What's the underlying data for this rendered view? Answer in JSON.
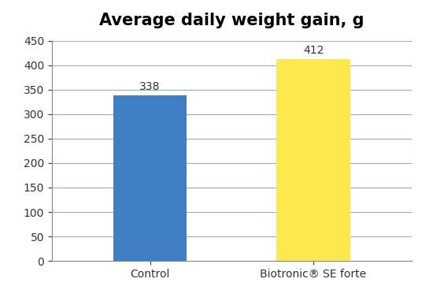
{
  "chart_data": {
    "type": "bar",
    "title": "Average daily weight gain, g",
    "categories": [
      "Control",
      "Biotronic® SE forte"
    ],
    "values": [
      338,
      412
    ],
    "colors": [
      "#3f7fc4",
      "#ffe84d"
    ],
    "ylim": [
      0,
      450
    ],
    "yticks": [
      0,
      50,
      100,
      150,
      200,
      250,
      300,
      350,
      400,
      450
    ],
    "grid": true,
    "data_labels": true
  }
}
